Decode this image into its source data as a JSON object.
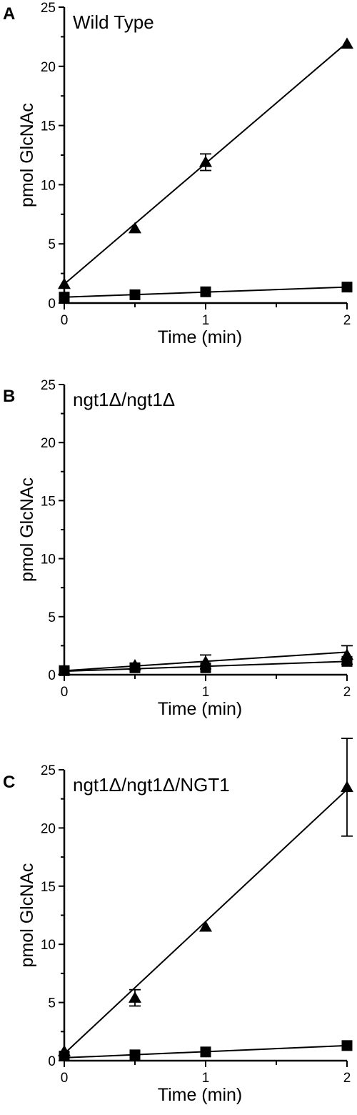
{
  "chart_data": [
    {
      "type": "scatter",
      "panel_label": "A",
      "title": "Wild Type",
      "xlabel": "Time (min)",
      "ylabel": "pmol GlcNAc",
      "xlim": [
        0,
        2
      ],
      "ylim": [
        0,
        25
      ],
      "xticks": [
        0,
        1,
        2
      ],
      "yticks": [
        0,
        5,
        10,
        15,
        20,
        25
      ],
      "grid": false,
      "legend": "none",
      "series": [
        {
          "marker": "triangle",
          "x": [
            0,
            0.5,
            1,
            2
          ],
          "y": [
            1.6,
            6.3,
            11.9,
            21.9
          ],
          "error": [
            0,
            0,
            0.7,
            0
          ],
          "fit": [
            1.6,
            22.0
          ]
        },
        {
          "marker": "square",
          "x": [
            0,
            0.5,
            1,
            2
          ],
          "y": [
            0.5,
            0.7,
            0.95,
            1.35
          ],
          "error": [
            0,
            0,
            0,
            0
          ],
          "fit": [
            0.5,
            1.35
          ]
        }
      ]
    },
    {
      "type": "scatter",
      "panel_label": "B",
      "title": "ngt1Δ/ngt1Δ",
      "xlabel": "Time (min)",
      "ylabel": "pmol GlcNAc",
      "xlim": [
        0,
        2
      ],
      "ylim": [
        0,
        25
      ],
      "xticks": [
        0,
        1,
        2
      ],
      "yticks": [
        0,
        5,
        10,
        15,
        20,
        25
      ],
      "grid": false,
      "legend": "none",
      "series": [
        {
          "marker": "triangle",
          "x": [
            0,
            0.5,
            1,
            2
          ],
          "y": [
            0.4,
            0.8,
            1.1,
            1.7
          ],
          "error": [
            0,
            0,
            0.6,
            0.8
          ],
          "fit": [
            0.35,
            1.95
          ]
        },
        {
          "marker": "square",
          "x": [
            0,
            0.5,
            1,
            2
          ],
          "y": [
            0.35,
            0.6,
            0.6,
            1.15
          ],
          "error": [
            0,
            0,
            0,
            0
          ],
          "fit": [
            0.3,
            1.15
          ]
        }
      ]
    },
    {
      "type": "scatter",
      "panel_label": "C",
      "title": "ngt1Δ/ngt1Δ/NGT1",
      "xlabel": "Time (min)",
      "ylabel": "pmol GlcNAc",
      "xlim": [
        0,
        2
      ],
      "ylim": [
        0,
        25
      ],
      "xticks": [
        0,
        1,
        2
      ],
      "yticks": [
        0,
        5,
        10,
        15,
        20,
        25
      ],
      "grid": false,
      "legend": "none",
      "series": [
        {
          "marker": "triangle",
          "x": [
            0,
            0.5,
            1,
            2
          ],
          "y": [
            0.8,
            5.4,
            11.5,
            23.5
          ],
          "error": [
            0,
            0.7,
            0,
            4.2
          ],
          "fit": [
            0.6,
            23.3
          ]
        },
        {
          "marker": "square",
          "x": [
            0,
            0.5,
            1,
            2
          ],
          "y": [
            0.4,
            0.5,
            0.75,
            1.3
          ],
          "error": [
            0,
            0,
            0,
            0
          ],
          "fit": [
            0.25,
            1.3
          ]
        }
      ]
    }
  ]
}
